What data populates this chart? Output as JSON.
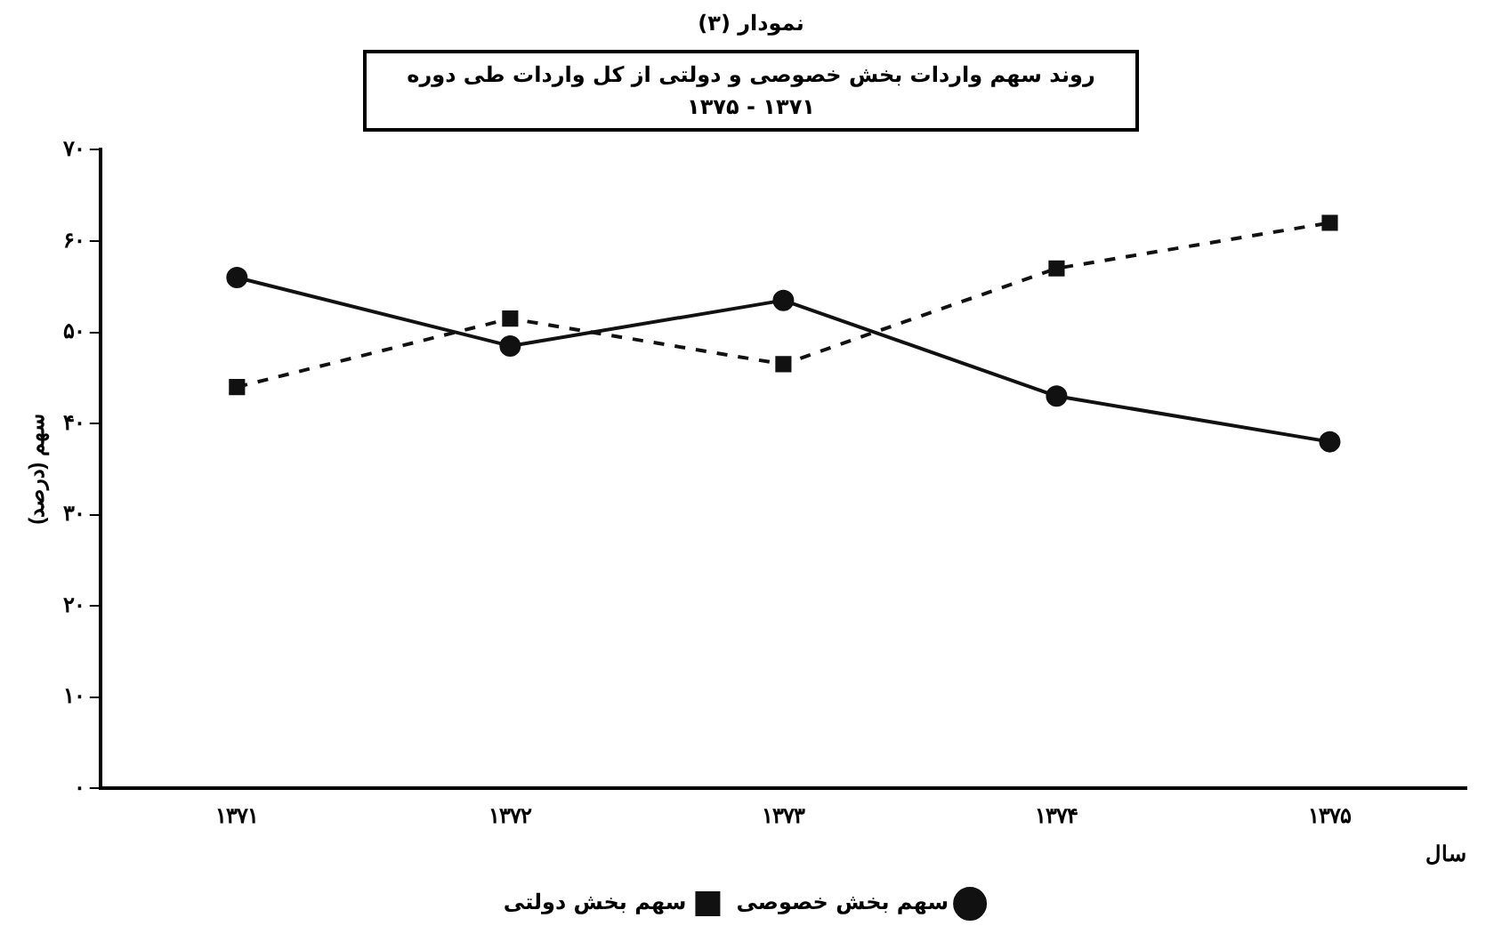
{
  "chart_data": {
    "type": "line",
    "title": "نمودار (۳)",
    "subtitle": "روند سهم واردات بخش خصوصی و دولتی از کل واردات طی دوره ۱۳۷۱ - ۱۳۷۵",
    "xlabel": "سال",
    "ylabel": "سهم (درصد)",
    "categories": [
      "۱۳۷۱",
      "۱۳۷۲",
      "۱۳۷۳",
      "۱۳۷۴",
      "۱۳۷۵"
    ],
    "series": [
      {
        "name": "سهم بخش خصوصی",
        "color": "#111111",
        "values": [
          56,
          48.5,
          53.5,
          43,
          38
        ],
        "marker": "circle",
        "line_style": "solid"
      },
      {
        "name": "سهم بخش دولتی",
        "color": "#111111",
        "values": [
          44,
          51.5,
          46.5,
          57,
          62
        ],
        "marker": "square",
        "line_style": "dashed"
      }
    ],
    "ylim": [
      0,
      70
    ],
    "yticks": [
      {
        "value": 0,
        "label": "۰"
      },
      {
        "value": 10,
        "label": "۱۰"
      },
      {
        "value": 20,
        "label": "۲۰"
      },
      {
        "value": 30,
        "label": "۳۰"
      },
      {
        "value": 40,
        "label": "۴۰"
      },
      {
        "value": 50,
        "label": "۵۰"
      },
      {
        "value": 60,
        "label": "۶۰"
      },
      {
        "value": 70,
        "label": "۷۰"
      }
    ],
    "grid": false,
    "legend": "bottom"
  }
}
